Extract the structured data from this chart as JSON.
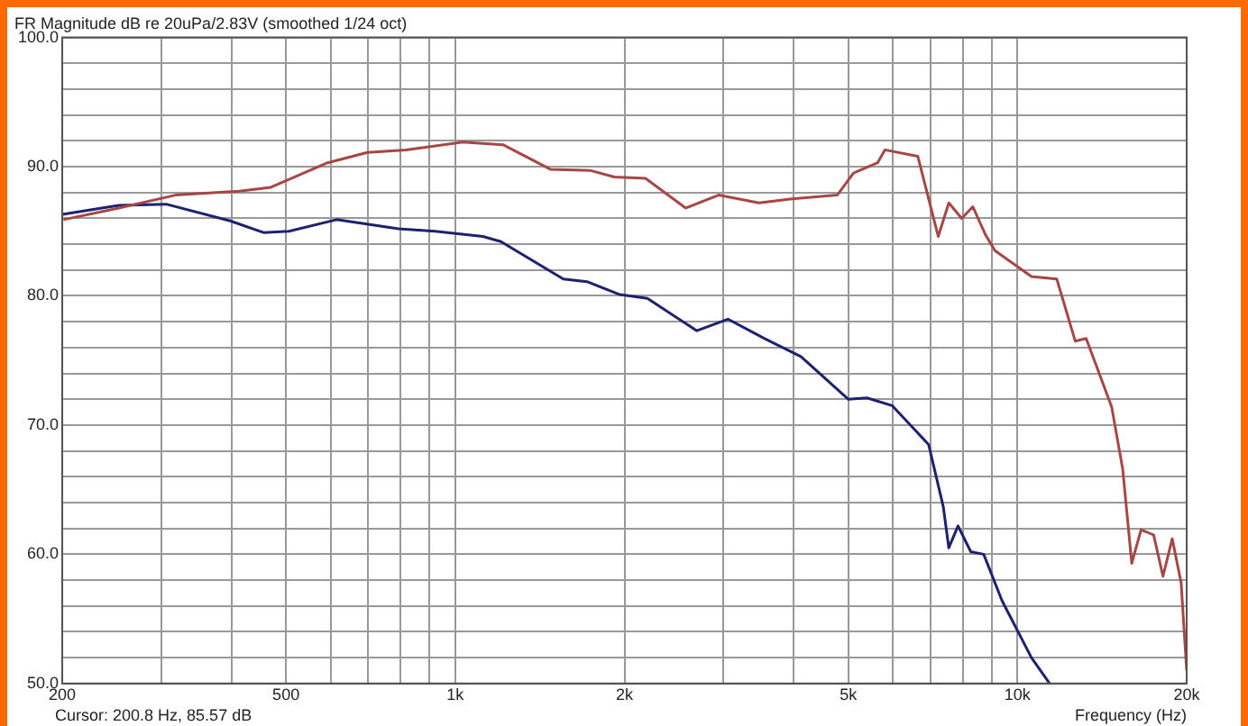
{
  "chart_data": {
    "type": "line",
    "title": "FR Magnitude dB re 20uPa/2.83V (smoothed 1/24 oct)",
    "xlabel": "Frequency (Hz)",
    "annotations": [
      "Cursor: 200.8 Hz, 85.57 dB"
    ],
    "log": "x",
    "grid": true,
    "legend": false,
    "marker": "none",
    "line_style": "solid",
    "xlim": [
      200,
      20000
    ],
    "ylim": [
      50,
      100
    ],
    "xticks": [
      {
        "value": 200,
        "label": "200"
      },
      {
        "value": 300,
        "label": null
      },
      {
        "value": 400,
        "label": null
      },
      {
        "value": 500,
        "label": "500"
      },
      {
        "value": 600,
        "label": null
      },
      {
        "value": 700,
        "label": null
      },
      {
        "value": 800,
        "label": null
      },
      {
        "value": 900,
        "label": null
      },
      {
        "value": 1000,
        "label": "1k"
      },
      {
        "value": 2000,
        "label": "2k"
      },
      {
        "value": 3000,
        "label": null
      },
      {
        "value": 4000,
        "label": null
      },
      {
        "value": 5000,
        "label": "5k"
      },
      {
        "value": 6000,
        "label": null
      },
      {
        "value": 7000,
        "label": null
      },
      {
        "value": 8000,
        "label": null
      },
      {
        "value": 9000,
        "label": null
      },
      {
        "value": 10000,
        "label": "10k"
      },
      {
        "value": 20000,
        "label": "20k"
      }
    ],
    "yticks": [
      {
        "value": 50,
        "label": "50.0"
      },
      {
        "value": 52,
        "label": null
      },
      {
        "value": 54,
        "label": null
      },
      {
        "value": 56,
        "label": null
      },
      {
        "value": 58,
        "label": null
      },
      {
        "value": 60,
        "label": "60.0"
      },
      {
        "value": 62,
        "label": null
      },
      {
        "value": 64,
        "label": null
      },
      {
        "value": 66,
        "label": null
      },
      {
        "value": 68,
        "label": null
      },
      {
        "value": 70,
        "label": "70.0"
      },
      {
        "value": 72,
        "label": null
      },
      {
        "value": 74,
        "label": null
      },
      {
        "value": 76,
        "label": null
      },
      {
        "value": 78,
        "label": null
      },
      {
        "value": 80,
        "label": "80.0"
      },
      {
        "value": 82,
        "label": null
      },
      {
        "value": 84,
        "label": null
      },
      {
        "value": 86,
        "label": null
      },
      {
        "value": 88,
        "label": null
      },
      {
        "value": 90,
        "label": "90.0"
      },
      {
        "value": 92,
        "label": null
      },
      {
        "value": 94,
        "label": null
      },
      {
        "value": 96,
        "label": null
      },
      {
        "value": 98,
        "label": null
      },
      {
        "value": 100,
        "label": "100.0"
      }
    ],
    "series": [
      {
        "color": "#a84646",
        "x": [
          201,
          252,
          318,
          413,
          470,
          593,
          698,
          817,
          1030,
          1216,
          1476,
          1742,
          1919,
          2180,
          2570,
          2940,
          3470,
          3940,
          4780,
          5110,
          5640,
          5810,
          6650,
          7230,
          7550,
          7960,
          8330,
          8780,
          9120,
          10590,
          11750,
          12670,
          13250,
          14710,
          15390,
          15970,
          16590,
          17470,
          18150,
          18850,
          19550,
          20000
        ],
        "values": [
          85.9,
          86.8,
          87.8,
          88.1,
          88.4,
          90.3,
          91.1,
          91.3,
          91.9,
          91.7,
          89.8,
          89.7,
          89.2,
          89.1,
          86.8,
          87.8,
          87.2,
          87.5,
          87.8,
          89.5,
          90.3,
          91.3,
          90.8,
          84.6,
          87.2,
          86.0,
          86.9,
          84.7,
          83.5,
          81.5,
          81.3,
          76.5,
          76.7,
          71.4,
          66.6,
          59.3,
          61.9,
          61.5,
          58.3,
          61.2,
          57.8,
          51.0
        ]
      },
      {
        "color": "#1c2170",
        "x": [
          200,
          252,
          306,
          398,
          456,
          506,
          615,
          793,
          921,
          1120,
          1206,
          1557,
          1715,
          1963,
          2197,
          2690,
          3055,
          3550,
          4120,
          5000,
          5400,
          5990,
          6950,
          7380,
          7550,
          7840,
          8260,
          8710,
          9390,
          10590,
          11410
        ],
        "values": [
          86.3,
          87.0,
          87.1,
          85.8,
          84.9,
          85.0,
          85.9,
          85.2,
          85.0,
          84.6,
          84.2,
          81.3,
          81.1,
          80.1,
          79.8,
          77.3,
          78.2,
          76.7,
          75.3,
          72.0,
          72.1,
          71.5,
          68.5,
          63.7,
          60.5,
          62.2,
          60.2,
          60.0,
          56.4,
          52.0,
          50.0
        ]
      }
    ]
  }
}
